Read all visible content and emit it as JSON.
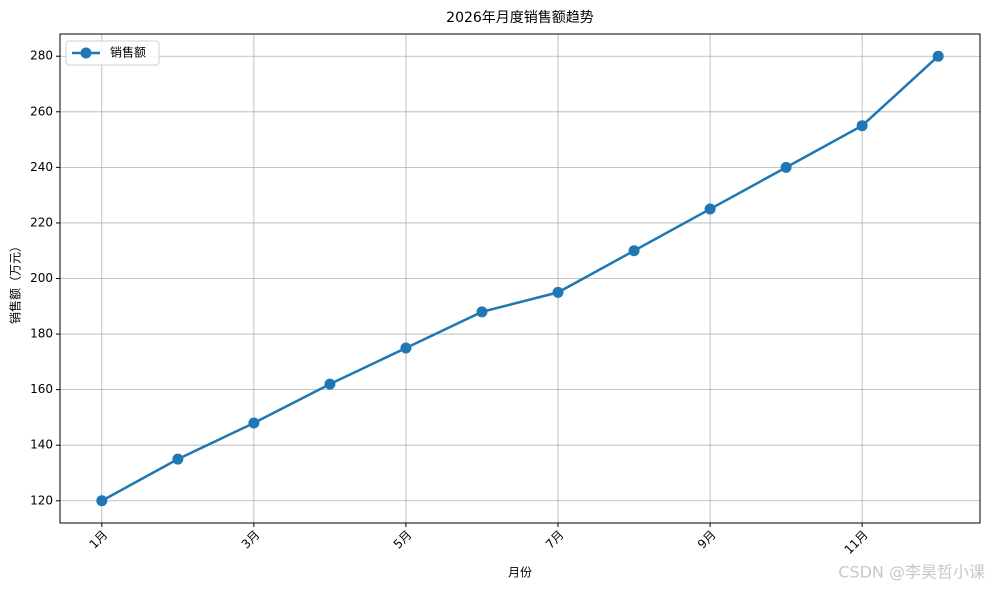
{
  "chart_data": {
    "type": "line",
    "title": "2026年月度销售额趋势",
    "x_label": "月份",
    "y_label": "销售额（万元）",
    "categories": [
      "1月",
      null,
      "3月",
      null,
      "5月",
      null,
      "7月",
      null,
      "9月",
      null,
      "11月",
      null
    ],
    "series": [
      {
        "name": "销售额",
        "color": "#1f77b4",
        "values": [
          120,
          135,
          148,
          162,
          175,
          188,
          195,
          210,
          225,
          240,
          255,
          280
        ]
      }
    ],
    "ylim": [
      112,
      288
    ],
    "yticks": [
      120,
      140,
      160,
      180,
      200,
      220,
      240,
      260,
      280
    ],
    "grid": true,
    "legend": "upper left",
    "watermark": "CSDN @李昊哲小课"
  }
}
